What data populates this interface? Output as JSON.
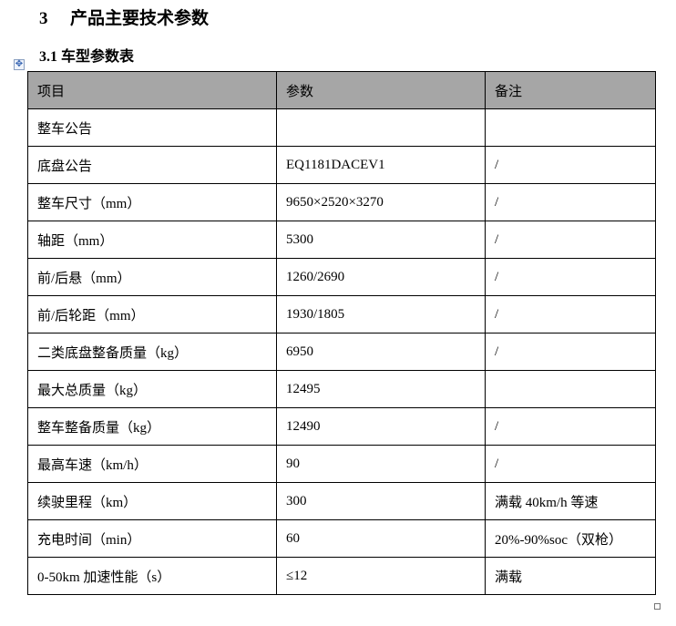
{
  "heading": {
    "number": "3",
    "title": "产品主要技术参数"
  },
  "subheading": "3.1 车型参数表",
  "table": {
    "headers": [
      "项目",
      "参数",
      "备注"
    ],
    "rows": [
      [
        "整车公告",
        "",
        ""
      ],
      [
        "底盘公告",
        "EQ1181DACEV1",
        "/"
      ],
      [
        "整车尺寸（mm）",
        "9650×2520×3270",
        "/"
      ],
      [
        "轴距（mm）",
        "5300",
        "/"
      ],
      [
        "前/后悬（mm）",
        "1260/2690",
        "/"
      ],
      [
        "前/后轮距（mm）",
        "1930/1805",
        "/"
      ],
      [
        "二类底盘整备质量（kg）",
        "6950",
        "/"
      ],
      [
        "最大总质量（kg）",
        "12495",
        ""
      ],
      [
        "整车整备质量（kg）",
        "12490",
        "/"
      ],
      [
        "最高车速（km/h）",
        "90",
        "/"
      ],
      [
        "续驶里程（km）",
        "300",
        "满载 40km/h 等速"
      ],
      [
        "充电时间（min）",
        "60",
        "20%-90%soc（双枪）"
      ],
      [
        "0-50km 加速性能（s）",
        "≤12",
        "满载"
      ]
    ]
  },
  "colors": {
    "header_bg": "#a6a6a6"
  }
}
